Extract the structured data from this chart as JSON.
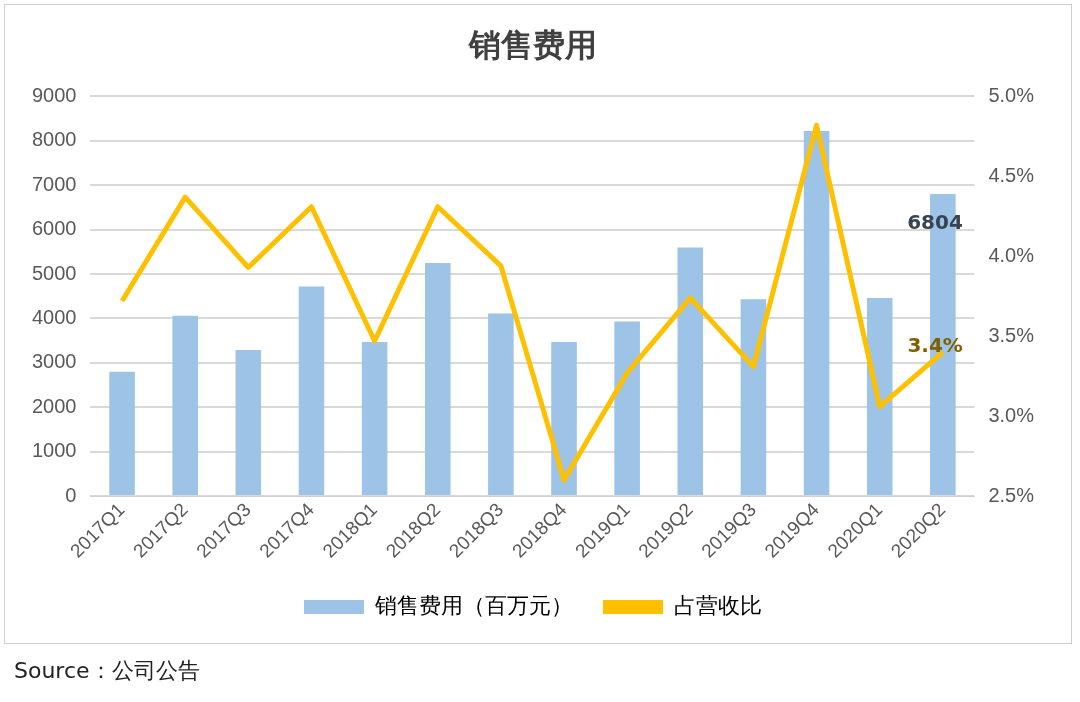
{
  "chart_data": {
    "type": "bar",
    "title": "销售费用",
    "categories": [
      "2017Q1",
      "2017Q2",
      "2017Q3",
      "2017Q4",
      "2018Q1",
      "2018Q2",
      "2018Q3",
      "2018Q4",
      "2019Q1",
      "2019Q2",
      "2019Q3",
      "2019Q4",
      "2020Q1",
      "2020Q2"
    ],
    "series": [
      {
        "name": "销售费用（百万元）",
        "type": "bar",
        "color": "#9dc3e6",
        "values": [
          2800,
          4060,
          3290,
          4720,
          3470,
          5250,
          4110,
          3470,
          3930,
          5600,
          4430,
          8220,
          4460,
          6804
        ],
        "value_labels": [
          null,
          null,
          null,
          null,
          null,
          null,
          null,
          null,
          null,
          null,
          null,
          null,
          null,
          "6804"
        ]
      },
      {
        "name": "占营收比",
        "type": "line",
        "axis": "y2",
        "color": "#ffc000",
        "values": [
          3.72,
          4.37,
          3.93,
          4.31,
          3.47,
          4.31,
          3.94,
          2.6,
          3.27,
          3.74,
          3.31,
          4.82,
          3.06,
          3.4
        ],
        "value_labels": [
          null,
          null,
          null,
          null,
          null,
          null,
          null,
          null,
          null,
          null,
          null,
          null,
          null,
          "3.4%"
        ]
      }
    ],
    "ylim": [
      0,
      9000
    ],
    "yticks": [
      0,
      1000,
      2000,
      3000,
      4000,
      5000,
      6000,
      7000,
      8000,
      9000
    ],
    "y2lim": [
      2.5,
      5
    ],
    "y2ticks": [
      {
        "value": 2.5,
        "label": "2.5%"
      },
      {
        "value": 3,
        "label": "3.0%"
      },
      {
        "value": 3.5,
        "label": "3.5%"
      },
      {
        "value": 4,
        "label": "4.0%"
      },
      {
        "value": 4.5,
        "label": "4.5%"
      },
      {
        "value": 5,
        "label": "5.0%"
      }
    ],
    "grid": "y",
    "legend": "bottom",
    "marker": "none",
    "annotations": [
      "Source：公司公告"
    ]
  }
}
